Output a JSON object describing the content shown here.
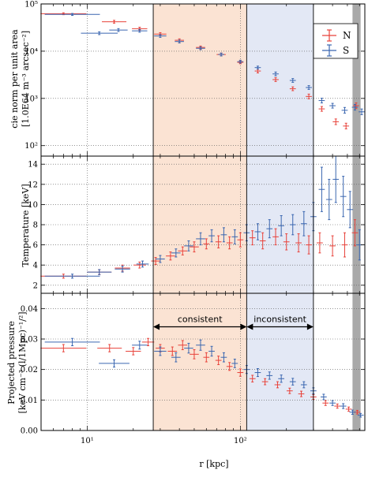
{
  "colors": {
    "N": "#e8423a",
    "S": "#3a66b0",
    "consistent_band": "#fbe3d3",
    "inconsistent_band": "#e3e8f5",
    "right_band": "#a9a9a9"
  },
  "chart_data": {
    "type": "scatter",
    "xlabel": "r [kpc]",
    "xscale": "log",
    "xlim": [
      5,
      650
    ],
    "x_tick_values": [
      10,
      100
    ],
    "x_tick_labels": [
      "10¹",
      "10²"
    ],
    "legend": {
      "placement": "top-right",
      "entries": [
        "N",
        "S"
      ]
    },
    "bands": [
      {
        "name": "consistent",
        "from": 27,
        "to": 110,
        "color": "consistent_band"
      },
      {
        "name": "inconsistent",
        "from": 110,
        "to": 300,
        "color": "inconsistent_band"
      },
      {
        "name": "",
        "from": 540,
        "to": 610,
        "color": "right_band"
      }
    ],
    "annotations": {
      "consistent": {
        "label": "consistent",
        "from": 27,
        "to": 110,
        "y": 0.034
      },
      "inconsistent": {
        "label": "inconsistent",
        "from": 110,
        "to": 300,
        "y": 0.034
      }
    },
    "panels": [
      {
        "name": "norm",
        "ylabel_line1": "cie norm per unit area",
        "ylabel_line2": "[1.0E64 m⁻³ arcsec⁻²]",
        "yscale": "log",
        "ylim": [
          60,
          100000
        ],
        "y_ticks": [
          {
            "value": 100,
            "label": "10²"
          },
          {
            "value": 1000,
            "label": "10³"
          },
          {
            "value": 10000,
            "label": "10⁴"
          },
          {
            "value": 100000,
            "label": "10⁵"
          }
        ],
        "series": [
          {
            "name": "N",
            "x": [
              7,
              15,
              22,
              30,
              40,
              55,
              75,
              100,
              130,
              170,
              220,
              280,
              340,
              420,
              490,
              570
            ],
            "y": [
              62000,
              42000,
              30000,
              23000,
              17000,
              12000,
              8500,
              5800,
              3800,
              2500,
              1600,
              1100,
              600,
              320,
              260,
              700
            ],
            "xerr": [
              0.15,
              0.08,
              0.05,
              0.04,
              0.03,
              0.03,
              0.03,
              0.02,
              0.02,
              0.02,
              0.02,
              0.02,
              0.02,
              0.02,
              0.02,
              0.02
            ],
            "yerr": [
              0.02,
              0.03,
              0.03,
              0.03,
              0.03,
              0.03,
              0.03,
              0.03,
              0.04,
              0.04,
              0.04,
              0.05,
              0.05,
              0.06,
              0.06,
              0.06
            ]
          },
          {
            "name": "S",
            "x": [
              8,
              12,
              16,
              22,
              30,
              40,
              55,
              75,
              100,
              130,
              170,
              220,
              280,
              340,
              400,
              480,
              560,
              620
            ],
            "y": [
              60000,
              24000,
              28000,
              27000,
              21000,
              16000,
              11500,
              8500,
              6000,
              4500,
              3300,
              2400,
              1700,
              900,
              700,
              560,
              650,
              520
            ],
            "xerr": [
              0.18,
              0.12,
              0.06,
              0.05,
              0.04,
              0.03,
              0.03,
              0.02,
              0.02,
              0.02,
              0.02,
              0.02,
              0.02,
              0.02,
              0.02,
              0.02,
              0.02,
              0.02
            ],
            "yerr": [
              0.02,
              0.03,
              0.03,
              0.03,
              0.03,
              0.03,
              0.03,
              0.03,
              0.03,
              0.03,
              0.04,
              0.04,
              0.04,
              0.05,
              0.05,
              0.06,
              0.06,
              0.06
            ]
          }
        ]
      },
      {
        "name": "temperature",
        "ylabel_line1": "Temperature [keV]",
        "ylabel_line2": "",
        "yscale": "linear",
        "ylim": [
          1.2,
          14.8
        ],
        "y_ticks": [
          {
            "value": 2,
            "label": "2"
          },
          {
            "value": 4,
            "label": "4"
          },
          {
            "value": 6,
            "label": "6"
          },
          {
            "value": 8,
            "label": "8"
          },
          {
            "value": 10,
            "label": "10"
          },
          {
            "value": 12,
            "label": "12"
          },
          {
            "value": 14,
            "label": "14"
          }
        ],
        "series": [
          {
            "name": "N",
            "x": [
              7,
              12,
              17,
              22,
              28,
              35,
              42,
              50,
              60,
              72,
              85,
              100,
              120,
              140,
              170,
              200,
              240,
              280,
              330,
              400,
              480,
              560
            ],
            "y": [
              2.9,
              3.3,
              3.7,
              4.0,
              4.4,
              4.9,
              5.4,
              5.8,
              6.1,
              6.3,
              6.2,
              6.5,
              6.7,
              6.4,
              6.8,
              6.3,
              6.2,
              6.0,
              6.2,
              5.9,
              6.0,
              7.2
            ],
            "xerr": [
              0.15,
              0.08,
              0.05,
              0.04,
              0.03,
              0.03,
              0.03,
              0.03,
              0.02,
              0.02,
              0.02,
              0.02,
              0.02,
              0.02,
              0.02,
              0.02,
              0.02,
              0.02,
              0.02,
              0.02,
              0.02,
              0.02
            ],
            "yerr": [
              0.2,
              0.25,
              0.3,
              0.3,
              0.35,
              0.4,
              0.4,
              0.5,
              0.5,
              0.6,
              0.6,
              0.7,
              0.7,
              0.8,
              0.8,
              0.8,
              0.9,
              0.9,
              1.0,
              1.0,
              1.2,
              1.3
            ]
          },
          {
            "name": "S",
            "x": [
              8,
              12,
              17,
              23,
              30,
              38,
              46,
              55,
              65,
              78,
              92,
              110,
              130,
              155,
              185,
              220,
              260,
              300,
              340,
              380,
              420,
              470,
              520,
              600
            ],
            "y": [
              2.9,
              3.3,
              3.6,
              4.1,
              4.6,
              5.2,
              5.9,
              6.6,
              6.9,
              7.0,
              6.8,
              7.2,
              7.3,
              7.6,
              7.9,
              8.0,
              8.1,
              8.8,
              11.5,
              10.5,
              12.5,
              10.8,
              9.5,
              6.0
            ],
            "xerr": [
              0.18,
              0.08,
              0.05,
              0.04,
              0.03,
              0.03,
              0.03,
              0.03,
              0.02,
              0.02,
              0.02,
              0.02,
              0.02,
              0.02,
              0.02,
              0.02,
              0.02,
              0.02,
              0.02,
              0.02,
              0.02,
              0.02,
              0.02,
              0.02
            ],
            "yerr": [
              0.2,
              0.25,
              0.3,
              0.3,
              0.35,
              0.4,
              0.5,
              0.6,
              0.6,
              0.7,
              0.7,
              0.8,
              0.8,
              0.9,
              1.0,
              1.0,
              1.2,
              1.4,
              2.2,
              2.0,
              2.3,
              2.0,
              1.8,
              1.5
            ]
          }
        ]
      },
      {
        "name": "pressure",
        "ylabel_line1": "Projected pressure",
        "ylabel_line2": "[keV cm⁻³ (l/1Mpc)⁻¹/²]",
        "yscale": "linear",
        "ylim": [
          0,
          0.045
        ],
        "y_ticks": [
          {
            "value": 0,
            "label": "0.00"
          },
          {
            "value": 0.01,
            "label": "0.01"
          },
          {
            "value": 0.02,
            "label": "0.02"
          },
          {
            "value": 0.03,
            "label": "0.03"
          },
          {
            "value": 0.04,
            "label": "0.04"
          }
        ],
        "series": [
          {
            "name": "N",
            "x": [
              7,
              14,
              20,
              25,
              30,
              36,
              42,
              50,
              60,
              72,
              85,
              100,
              120,
              145,
              175,
              210,
              250,
              300,
              360,
              430,
              510,
              580
            ],
            "y": [
              0.027,
              0.027,
              0.026,
              0.029,
              0.027,
              0.026,
              0.028,
              0.025,
              0.024,
              0.023,
              0.021,
              0.019,
              0.017,
              0.016,
              0.015,
              0.013,
              0.012,
              0.011,
              0.009,
              0.008,
              0.007,
              0.006
            ],
            "xerr": [
              0.15,
              0.08,
              0.05,
              0.04,
              0.03,
              0.03,
              0.03,
              0.03,
              0.02,
              0.02,
              0.02,
              0.02,
              0.02,
              0.02,
              0.02,
              0.02,
              0.02,
              0.02,
              0.02,
              0.02,
              0.02,
              0.02
            ],
            "yerr": [
              0.0012,
              0.0012,
              0.0012,
              0.0012,
              0.0012,
              0.0014,
              0.0015,
              0.0015,
              0.0015,
              0.0014,
              0.0013,
              0.0012,
              0.0011,
              0.001,
              0.001,
              0.0009,
              0.0009,
              0.0008,
              0.0008,
              0.0007,
              0.0007,
              0.0006
            ]
          },
          {
            "name": "S",
            "x": [
              8,
              15,
              22,
              30,
              38,
              46,
              55,
              65,
              78,
              92,
              110,
              130,
              155,
              185,
              220,
              260,
              300,
              350,
              400,
              470,
              540,
              610
            ],
            "y": [
              0.029,
              0.022,
              0.028,
              0.026,
              0.024,
              0.027,
              0.028,
              0.026,
              0.024,
              0.022,
              0.02,
              0.019,
              0.018,
              0.017,
              0.016,
              0.015,
              0.013,
              0.011,
              0.009,
              0.008,
              0.006,
              0.005
            ],
            "xerr": [
              0.18,
              0.1,
              0.05,
              0.04,
              0.03,
              0.03,
              0.03,
              0.02,
              0.02,
              0.02,
              0.02,
              0.02,
              0.02,
              0.02,
              0.02,
              0.02,
              0.02,
              0.02,
              0.02,
              0.02,
              0.02,
              0.02
            ],
            "yerr": [
              0.0012,
              0.0012,
              0.0013,
              0.0014,
              0.0015,
              0.0016,
              0.0017,
              0.0016,
              0.0015,
              0.0014,
              0.0013,
              0.0013,
              0.0012,
              0.0012,
              0.0011,
              0.001,
              0.001,
              0.0009,
              0.0008,
              0.0008,
              0.0007,
              0.0006
            ]
          }
        ]
      }
    ]
  }
}
